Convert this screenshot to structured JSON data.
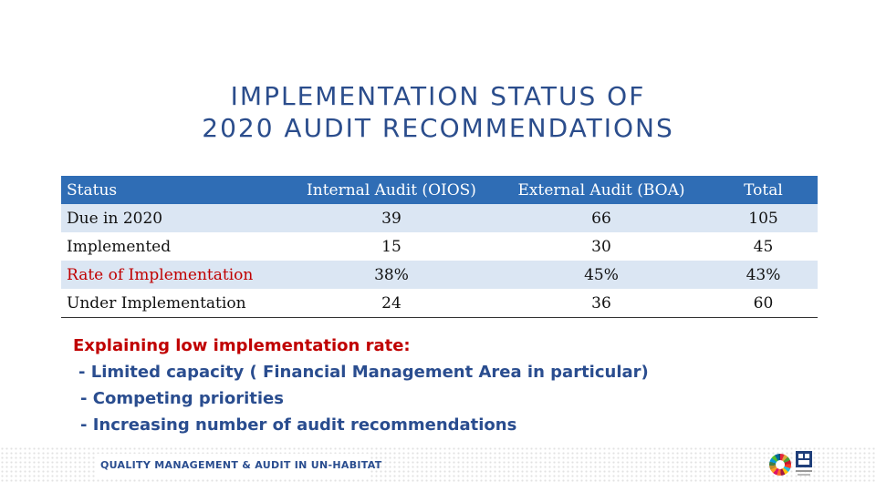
{
  "title": {
    "line1": "IMPLEMENTATION STATUS OF",
    "line2": "2020 AUDIT RECOMMENDATIONS"
  },
  "table": {
    "headers": [
      "Status",
      "Internal Audit (OIOS)",
      "External Audit (BOA)",
      "Total"
    ],
    "rows": [
      [
        "Due in 2020",
        "39",
        "66",
        "105"
      ],
      [
        "Implemented",
        "15",
        "30",
        "45"
      ],
      [
        "Rate of Implementation",
        "38%",
        "45%",
        "43%"
      ],
      [
        "Under Implementation",
        "24",
        "36",
        "60"
      ]
    ]
  },
  "explanation": {
    "heading": "Explaining low implementation rate:",
    "points": [
      "- Limited capacity ( Financial Management Area in particular)",
      "- Competing priorities",
      "- Increasing number of audit recommendations"
    ]
  },
  "footer": {
    "text": "QUALITY MANAGEMENT & AUDIT IN UN-HABITAT"
  },
  "colors": {
    "title": "#2b4d8c",
    "header_bg": "#2f6db5",
    "row_shade": "#dbe6f3",
    "highlight_red": "#c00000",
    "body_blue": "#2a4d8f"
  },
  "icons": [
    "sdg-wheel-icon",
    "un-habitat-logo-icon"
  ]
}
